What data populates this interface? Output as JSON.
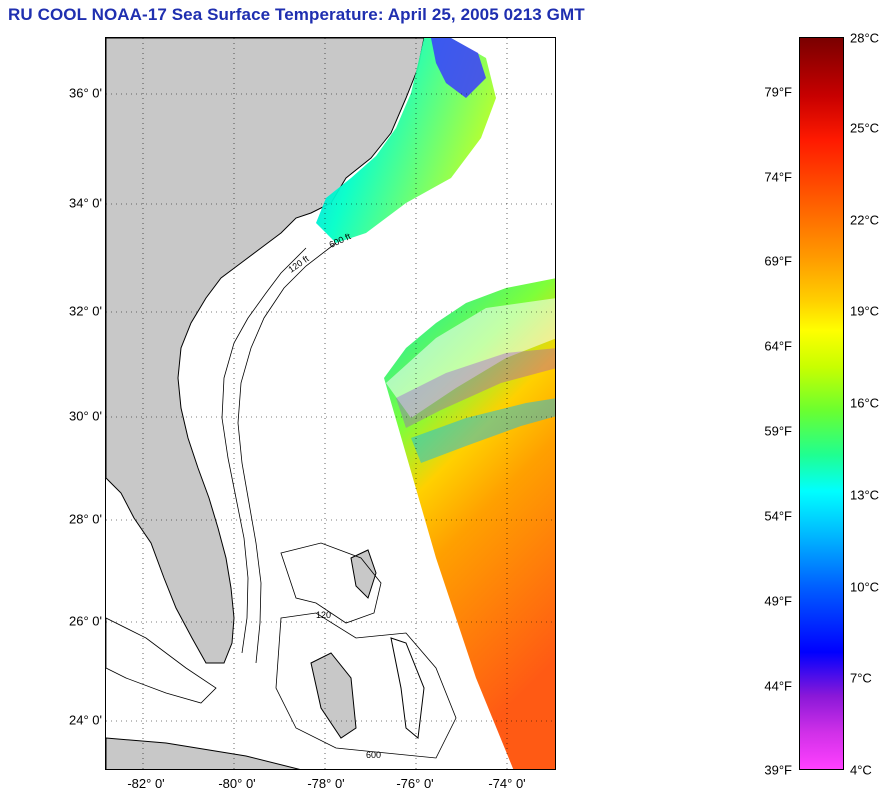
{
  "title": "RU COOL  NOAA-17  Sea Surface Temperature:  April 25, 2005 0213 GMT",
  "map": {
    "latitude_labels": [
      "36° 0'",
      "34° 0'",
      "32° 0'",
      "30° 0'",
      "28° 0'",
      "26° 0'",
      "24° 0'"
    ],
    "longitude_labels": [
      "-82° 0'",
      "-80° 0'",
      "-78° 0'",
      "-76° 0'",
      "-74° 0'"
    ],
    "contour_labels": [
      "120 ft",
      "600 ft",
      "120",
      "600"
    ],
    "colors": {
      "land": "#c8c8c8",
      "no_data": "#ffffff",
      "cold": "#1e3cff",
      "cool": "#00e6e6",
      "mid": "#7dff3a",
      "warm": "#ffa000",
      "hot": "#ff5a14"
    }
  },
  "colorbar": {
    "fahrenheit_labels": [
      "79°F",
      "74°F",
      "69°F",
      "64°F",
      "59°F",
      "54°F",
      "49°F",
      "44°F",
      "39°F"
    ],
    "celsius_labels": [
      "28°C",
      "25°C",
      "22°C",
      "19°C",
      "16°C",
      "13°C",
      "10°C",
      "7°C",
      "4°C"
    ],
    "range_celsius": [
      4,
      28
    ]
  }
}
